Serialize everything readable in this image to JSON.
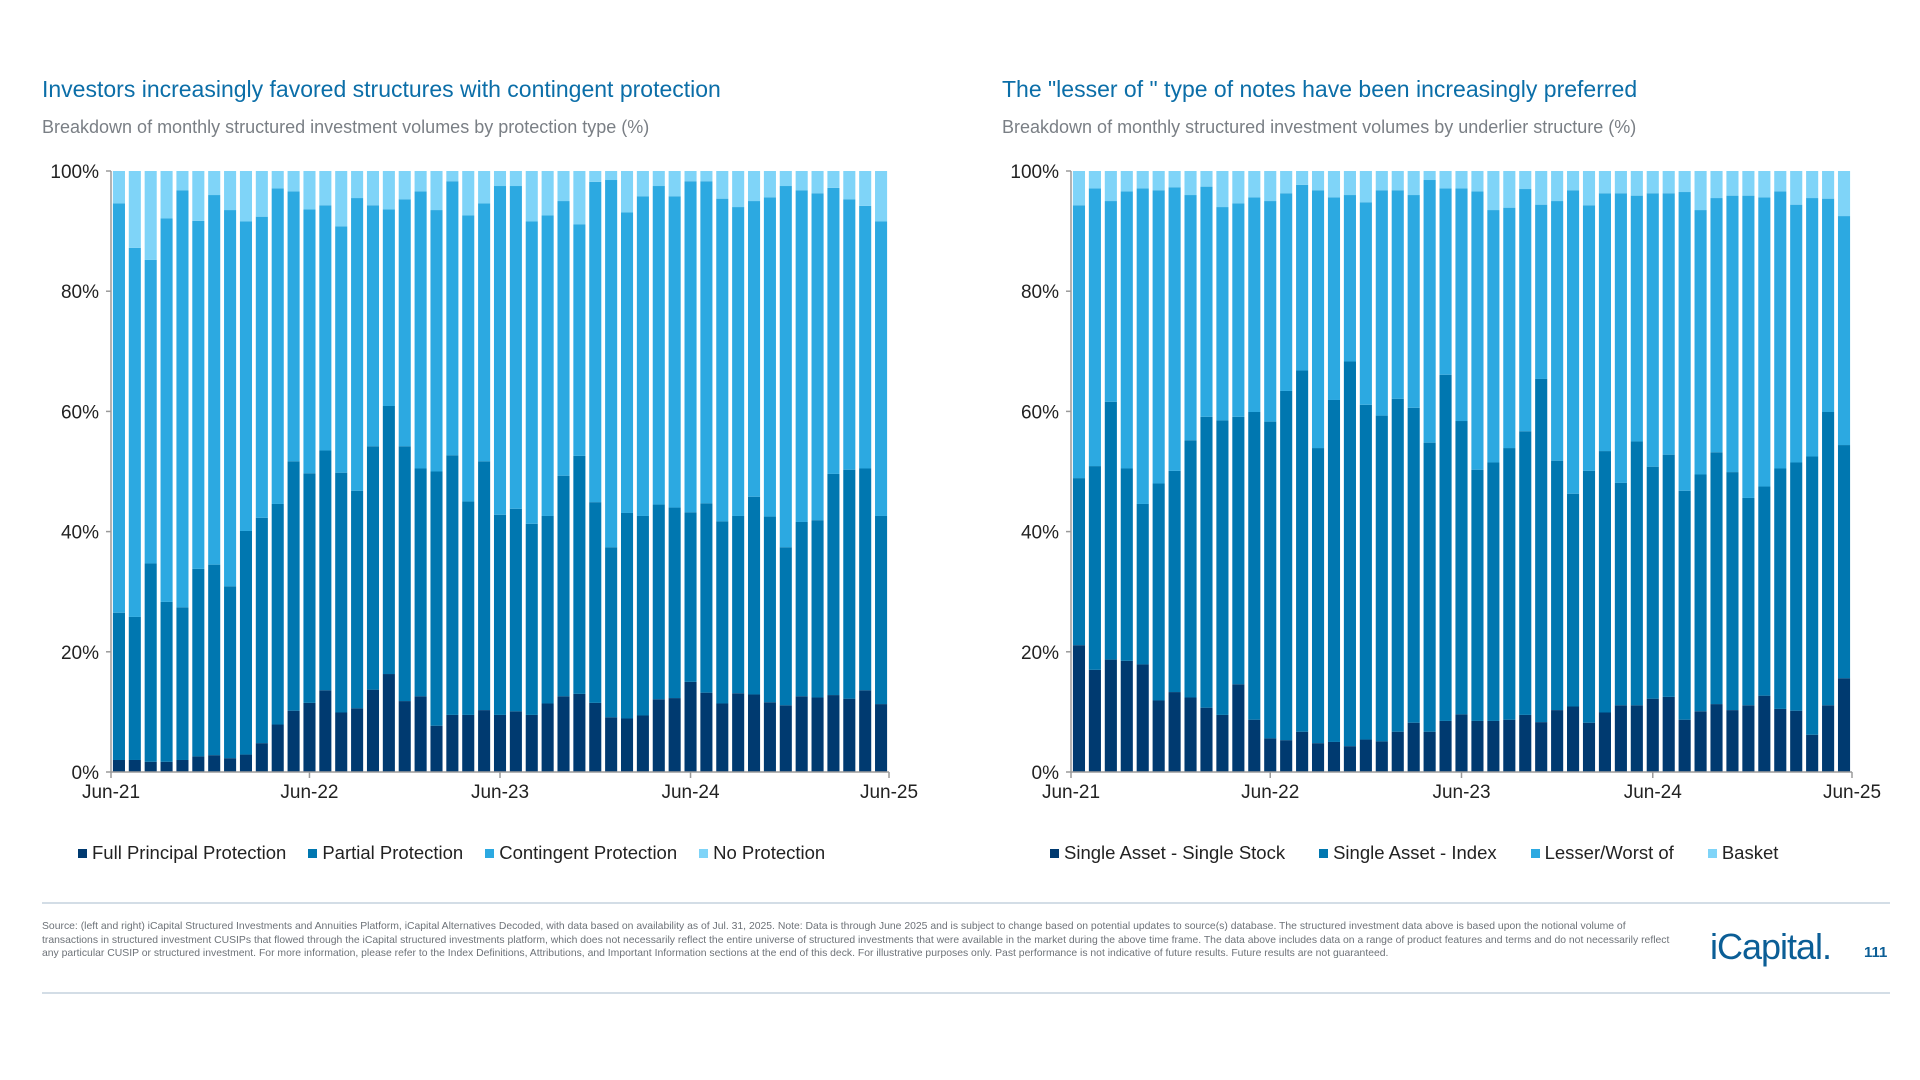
{
  "categories": [
    "Jun-21",
    "Jul-21",
    "Aug-21",
    "Sep-21",
    "Oct-21",
    "Nov-21",
    "Dec-21",
    "Jan-22",
    "Feb-22",
    "Mar-22",
    "Apr-22",
    "May-22",
    "Jun-22",
    "Jul-22",
    "Aug-22",
    "Sep-22",
    "Oct-22",
    "Nov-22",
    "Dec-22",
    "Jan-23",
    "Feb-23",
    "Mar-23",
    "Apr-23",
    "May-23",
    "Jun-23",
    "Jul-23",
    "Aug-23",
    "Sep-23",
    "Oct-23",
    "Nov-23",
    "Dec-23",
    "Jan-24",
    "Feb-24",
    "Mar-24",
    "Apr-24",
    "May-24",
    "Jun-24",
    "Jul-24",
    "Aug-24",
    "Sep-24",
    "Oct-24",
    "Nov-24",
    "Dec-24",
    "Jan-25",
    "Feb-25",
    "Mar-25",
    "Apr-25",
    "May-25",
    "Jun-25"
  ],
  "chart_data": [
    {
      "type": "bar",
      "stacked": true,
      "title": "Investors increasingly favored structures with contingent protection",
      "subtitle": "Breakdown of monthly structured investment volumes by protection type (%)",
      "xlabel": "",
      "ylabel": "",
      "ylim": [
        0,
        100
      ],
      "y_ticks": [
        "0%",
        "20%",
        "40%",
        "60%",
        "80%",
        "100%"
      ],
      "x_ticks": [
        "Jun-21",
        "Jun-22",
        "Jun-23",
        "Jun-24",
        "Jun-25"
      ],
      "grid": false,
      "legend_position": "bottom",
      "series": [
        {
          "name": "Full Principal Protection",
          "color": "#003a70",
          "values": [
            2,
            2,
            1.7,
            1.7,
            2,
            2.6,
            2.8,
            2.3,
            2.9,
            4.8,
            7.9,
            10.2,
            11.5,
            13.6,
            9.9,
            10.6,
            13.7,
            16.3,
            11.8,
            12.6,
            7.7,
            9.5,
            9.5,
            10.3,
            9.5,
            10.1,
            9.5,
            11.4,
            12.6,
            13,
            11.5,
            9.1,
            8.9,
            9.4,
            12.1,
            12.3,
            15,
            13.2,
            11.4,
            13.1,
            12.9,
            11.6,
            11.1,
            12.6,
            12.4,
            12.8,
            12.2,
            13.6,
            11.3
          ]
        },
        {
          "name": "Partial Protection",
          "color": "#0077b0",
          "values": [
            24.5,
            23.8,
            33,
            26.6,
            25.4,
            31.2,
            31.7,
            28.6,
            37.2,
            37.5,
            36.7,
            41.5,
            38.2,
            39.9,
            39.9,
            36.2,
            40.5,
            44.6,
            42.4,
            37.9,
            42.3,
            43.2,
            35.5,
            41.4,
            33.3,
            33.7,
            31.8,
            31.2,
            36.7,
            39.6,
            33.4,
            28.3,
            34.2,
            33.2,
            32.4,
            31.7,
            28.2,
            31.5,
            30.3,
            29.5,
            32.9,
            30.9,
            26.3,
            29,
            29.5,
            36.8,
            38.1,
            36.9,
            31.3
          ]
        },
        {
          "name": "Contingent Protection",
          "color": "#2ca9e1",
          "values": [
            68.1,
            61.4,
            50.5,
            63.8,
            69.4,
            57.9,
            61.5,
            62.6,
            51.5,
            50.1,
            52.5,
            44.9,
            43.9,
            40.8,
            41,
            48.7,
            40.1,
            32.7,
            41.1,
            46.1,
            43.5,
            45.6,
            47.6,
            42.9,
            54.7,
            53.7,
            50.3,
            50,
            45.7,
            38.5,
            53.3,
            61.1,
            50,
            53.2,
            53,
            51.8,
            55.1,
            53.6,
            53.7,
            51.4,
            49.2,
            53.1,
            60.1,
            55.2,
            54.4,
            47.6,
            45,
            43.7,
            49
          ]
        },
        {
          "name": "No Protection",
          "color": "#7fd4f8",
          "values": [
            5.4,
            12.8,
            14.8,
            7.9,
            3.2,
            8.3,
            4,
            6.5,
            8.4,
            7.6,
            2.9,
            3.4,
            6.4,
            5.7,
            9.2,
            4.5,
            5.7,
            6.4,
            4.7,
            3.4,
            6.5,
            1.7,
            7.4,
            5.4,
            2.5,
            2.5,
            8.4,
            7.4,
            5,
            8.9,
            1.8,
            1.5,
            6.9,
            4.2,
            2.5,
            4.2,
            1.7,
            1.7,
            4.6,
            6,
            5,
            4.4,
            2.5,
            3.2,
            3.7,
            2.8,
            4.7,
            5.8,
            8.4
          ]
        }
      ]
    },
    {
      "type": "bar",
      "stacked": true,
      "title": "The \"lesser of \" type of notes have been increasingly preferred",
      "subtitle": "Breakdown of monthly structured investment volumes by underlier structure (%)",
      "xlabel": "",
      "ylabel": "",
      "ylim": [
        0,
        100
      ],
      "y_ticks": [
        "0%",
        "20%",
        "40%",
        "60%",
        "80%",
        "100%"
      ],
      "x_ticks": [
        "Jun-21",
        "Jun-22",
        "Jun-23",
        "Jun-24",
        "Jun-25"
      ],
      "grid": false,
      "legend_position": "bottom",
      "series": [
        {
          "name": "Single Asset - Single Stock",
          "color": "#003a70",
          "values": [
            21.1,
            17,
            18.7,
            18.5,
            17.9,
            11.9,
            13.3,
            12.4,
            10.7,
            9.5,
            14.6,
            8.7,
            5.6,
            5.3,
            6.7,
            4.8,
            5,
            4.3,
            5.4,
            5.1,
            6.7,
            8.2,
            6.7,
            8.5,
            9.6,
            8.5,
            8.5,
            8.7,
            9.5,
            8.3,
            10.3,
            10.9,
            8.2,
            9.9,
            11.1,
            11.1,
            12.2,
            12.5,
            8.7,
            10.1,
            11.3,
            10.3,
            11.1,
            12.7,
            10.5,
            10.2,
            6.2,
            11.1,
            15.6
          ]
        },
        {
          "name": "Single Asset - Index",
          "color": "#0077b0",
          "values": [
            27.8,
            33.9,
            42.9,
            32,
            26.7,
            36.1,
            36.8,
            42.8,
            48.4,
            49,
            44.5,
            51.2,
            52.7,
            58.1,
            60.1,
            49.1,
            56.9,
            64,
            55.7,
            54.2,
            55.4,
            52.4,
            48.1,
            57.6,
            48.8,
            41.8,
            43,
            45.2,
            47.2,
            57.1,
            41.5,
            35.4,
            41.9,
            43.5,
            37,
            43.9,
            38.6,
            40.3,
            38.1,
            39.4,
            41.9,
            39.6,
            34.5,
            34.8,
            40,
            41.3,
            46.3,
            48.8,
            38.8
          ]
        },
        {
          "name": "Lesser/Worst of",
          "color": "#2ca9e1",
          "values": [
            45.4,
            46.2,
            33.4,
            46.1,
            52.5,
            48.8,
            47.2,
            40.8,
            38.3,
            35.5,
            35.5,
            35.7,
            36.7,
            32.9,
            30.9,
            42.9,
            33.7,
            27.7,
            33.7,
            37.5,
            34.7,
            35.4,
            43.7,
            31,
            38.7,
            46.3,
            42,
            40,
            40.3,
            29,
            43.2,
            50.5,
            44.2,
            42.9,
            48.2,
            40.9,
            45.5,
            43.5,
            49.7,
            44,
            42.3,
            46,
            50.3,
            48.1,
            46.1,
            42.9,
            43,
            35.5,
            38.1
          ]
        },
        {
          "name": "Basket",
          "color": "#7fd4f8",
          "values": [
            5.7,
            2.9,
            5,
            3.4,
            2.9,
            3.2,
            2.7,
            4,
            2.6,
            6,
            5.4,
            4.4,
            5,
            3.7,
            2.3,
            3.2,
            4.4,
            4,
            5.2,
            3.2,
            3.2,
            4,
            1.5,
            2.9,
            2.9,
            3.4,
            6.5,
            6.1,
            3,
            5.6,
            5,
            3.2,
            5.7,
            3.7,
            3.7,
            4.1,
            3.7,
            3.7,
            3.5,
            6.5,
            4.5,
            4.1,
            4.1,
            4.4,
            3.4,
            5.6,
            4.5,
            4.6,
            7.5
          ]
        }
      ]
    }
  ],
  "footer": {
    "source": "Source: (left and right) iCapital Structured Investments and Annuities Platform, iCapital Alternatives Decoded, with data based on availability as of Jul. 31, 2025. Note: Data is through June 2025 and is subject to change based on potential updates to source(s) database. The structured investment data above is based upon the notional volume of transactions in structured investment CUSIPs that flowed through the iCapital structured investments platform, which does not necessarily reflect the entire universe of structured investments that were available in the market during the above time frame. The data above includes data on a range of product features and terms and do not necessarily reflect any particular CUSIP or structured investment. For more information, please refer to the Index Definitions, Attributions, and Important Information sections at the end of this deck. For illustrative purposes only. Past performance is not indicative of future results. Future results are not guaranteed.",
    "logo": "iCapital.",
    "page_number": "111"
  },
  "colors": {
    "title": "#0b6ea8",
    "subtitle": "#7a7f85",
    "axis": "#9a9a9a"
  }
}
